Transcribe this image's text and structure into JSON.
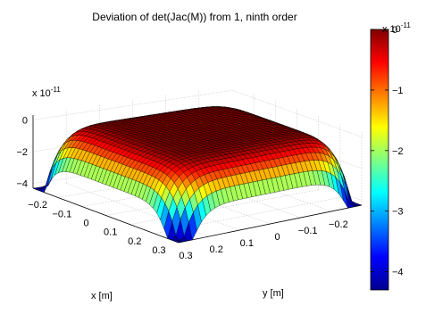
{
  "chart_data": {
    "type": "surface",
    "title": "Deviation of det(Jac(M)) from 1, ninth order",
    "xlabel": "x [m]",
    "ylabel": "y [m]",
    "zlabel": "",
    "x_range": [
      -0.3,
      0.3
    ],
    "y_range": [
      -0.3,
      0.3
    ],
    "z_range": [
      -4.3e-11,
      3e-12
    ],
    "z_scale_label": "x 10",
    "z_scale_exponent": "-11",
    "x_ticks": [
      "0.3",
      "0.2",
      "0.1",
      "0",
      "−0.1",
      "−0.2"
    ],
    "x_tick_values": [
      0.3,
      0.2,
      0.1,
      0,
      -0.1,
      -0.2
    ],
    "y_ticks": [
      "0.3",
      "0.2",
      "0.1",
      "0",
      "−0.1",
      "−0.2"
    ],
    "y_tick_values": [
      0.3,
      0.2,
      0.1,
      0,
      -0.1,
      -0.2
    ],
    "z_ticks": [
      "0",
      "−2",
      "−4"
    ],
    "z_tick_values": [
      0,
      -2,
      -4
    ],
    "surface_description": {
      "max_at_center": 0,
      "min_at_corners": -4.3,
      "units_multiplier": "1e-11"
    },
    "colorbar": {
      "scale_label": "x 10",
      "scale_exponent": "-11",
      "ticks": [
        "0",
        "−1",
        "−2",
        "−3",
        "−4"
      ],
      "tick_values": [
        0,
        -1,
        -2,
        -3,
        -4
      ],
      "range": [
        -4.3,
        0
      ],
      "colormap": "jet"
    },
    "grid": true,
    "legend": "none"
  }
}
